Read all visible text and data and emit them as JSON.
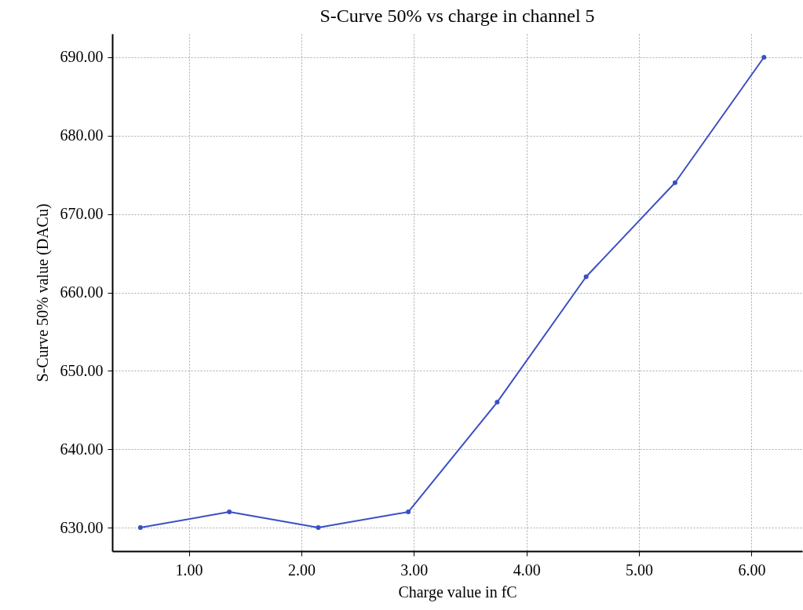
{
  "chart_data": {
    "type": "line",
    "title": "S-Curve 50% vs charge in channel 5",
    "xlabel": "Charge value in fC",
    "ylabel": "S-Curve 50% value (DACu)",
    "x": [
      0.57,
      1.36,
      2.15,
      2.95,
      3.74,
      4.53,
      5.32,
      6.11
    ],
    "series": [
      {
        "color": "#3a4fc4",
        "values": [
          630,
          632,
          630,
          632,
          646,
          662,
          674,
          690
        ]
      }
    ],
    "xlim": [
      0.32,
      6.45
    ],
    "xticks": [
      {
        "value": 1,
        "label": "1.00"
      },
      {
        "value": 2,
        "label": "2.00"
      },
      {
        "value": 3,
        "label": "3.00"
      },
      {
        "value": 4,
        "label": "4.00"
      },
      {
        "value": 5,
        "label": "5.00"
      },
      {
        "value": 6,
        "label": "6.00"
      }
    ],
    "ylim": [
      627,
      693
    ],
    "yticks": [
      {
        "value": 630,
        "label": "630.00"
      },
      {
        "value": 640,
        "label": "640.00"
      },
      {
        "value": 650,
        "label": "650.00"
      },
      {
        "value": 660,
        "label": "660.00"
      },
      {
        "value": 670,
        "label": "670.00"
      },
      {
        "value": 680,
        "label": "680.00"
      },
      {
        "value": 690,
        "label": "690.00"
      }
    ],
    "grid": true,
    "marker": "circle",
    "line_style": "solid"
  }
}
